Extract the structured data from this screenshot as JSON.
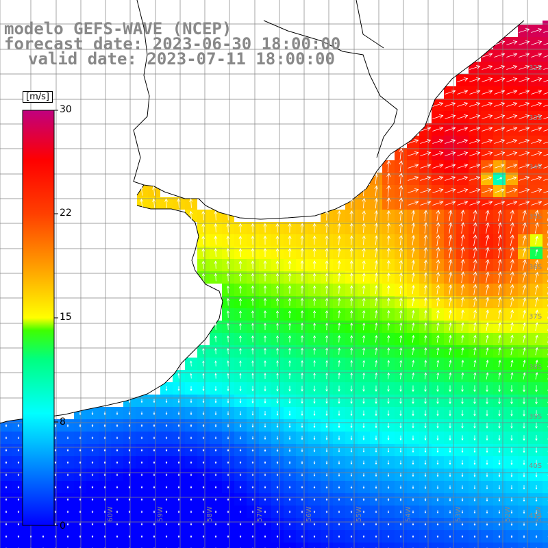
{
  "title": {
    "line1": "modelo GEFS-WAVE (NCEP)",
    "line2": "forecast date: 2023-06-30 18:00:00",
    "line3": "valid date: 2023-07-11 18:00:00"
  },
  "colorbar": {
    "unit": "[m/s]",
    "ticks": [
      "30",
      "22",
      "15",
      "8",
      "0"
    ],
    "tick_values": [
      30,
      22,
      15,
      8,
      0
    ]
  },
  "lat_labels": [
    "32S",
    "33S",
    "34S",
    "35S",
    "36S",
    "37S",
    "38S",
    "39S",
    "40S",
    "41S"
  ],
  "lon_labels": [
    "60W",
    "59W",
    "58W",
    "57W",
    "56W",
    "55W",
    "54W",
    "53W",
    "52W",
    "51W"
  ],
  "colors": {
    "land": "#ffffff",
    "coast": "#000000",
    "grid": "#808080",
    "arrow": "#ffffff",
    "text": "#888888"
  }
}
